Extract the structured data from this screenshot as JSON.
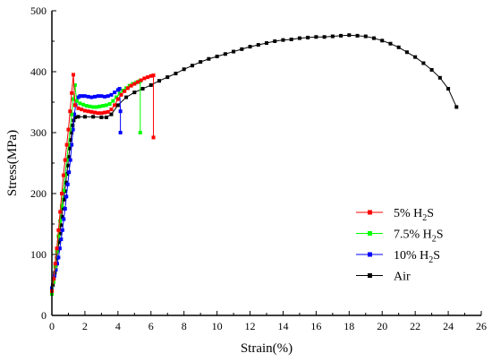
{
  "chart_data": {
    "type": "line",
    "xlabel": "Strain(%)",
    "ylabel": "Stress(MPa)",
    "xlim": [
      0,
      26
    ],
    "ylim": [
      0,
      500
    ],
    "x_ticks": [
      0,
      2,
      4,
      6,
      8,
      10,
      12,
      14,
      16,
      18,
      20,
      22,
      24,
      26
    ],
    "y_ticks": [
      0,
      100,
      200,
      300,
      400,
      500
    ],
    "legend_position": "right-middle",
    "series": [
      {
        "name": "5% H",
        "subscript": "2",
        "suffix": "S",
        "color": "#ff0000",
        "marker": "square",
        "points": [
          [
            0.0,
            40
          ],
          [
            0.1,
            60
          ],
          [
            0.2,
            85
          ],
          [
            0.3,
            110
          ],
          [
            0.4,
            140
          ],
          [
            0.5,
            170
          ],
          [
            0.6,
            200
          ],
          [
            0.7,
            230
          ],
          [
            0.8,
            255
          ],
          [
            0.9,
            280
          ],
          [
            1.0,
            305
          ],
          [
            1.1,
            335
          ],
          [
            1.2,
            365
          ],
          [
            1.3,
            395
          ],
          [
            1.4,
            345
          ],
          [
            1.6,
            340
          ],
          [
            1.8,
            338
          ],
          [
            2.0,
            336
          ],
          [
            2.2,
            335
          ],
          [
            2.4,
            334
          ],
          [
            2.6,
            333
          ],
          [
            2.8,
            332
          ],
          [
            3.0,
            332
          ],
          [
            3.2,
            333
          ],
          [
            3.4,
            334
          ],
          [
            3.6,
            338
          ],
          [
            3.8,
            345
          ],
          [
            4.0,
            355
          ],
          [
            4.2,
            362
          ],
          [
            4.4,
            368
          ],
          [
            4.6,
            373
          ],
          [
            4.8,
            377
          ],
          [
            5.0,
            380
          ],
          [
            5.2,
            383
          ],
          [
            5.4,
            386
          ],
          [
            5.6,
            389
          ],
          [
            5.8,
            391
          ],
          [
            6.0,
            393
          ],
          [
            6.15,
            394
          ],
          [
            6.15,
            292
          ]
        ]
      },
      {
        "name": "7.5% H",
        "subscript": "2",
        "suffix": "S",
        "color": "#00ff00",
        "marker": "square",
        "points": [
          [
            0.0,
            35
          ],
          [
            0.1,
            55
          ],
          [
            0.2,
            80
          ],
          [
            0.3,
            105
          ],
          [
            0.4,
            130
          ],
          [
            0.5,
            155
          ],
          [
            0.6,
            180
          ],
          [
            0.7,
            205
          ],
          [
            0.8,
            230
          ],
          [
            0.9,
            255
          ],
          [
            1.0,
            280
          ],
          [
            1.1,
            305
          ],
          [
            1.2,
            330
          ],
          [
            1.3,
            355
          ],
          [
            1.4,
            378
          ],
          [
            1.5,
            352
          ],
          [
            1.7,
            348
          ],
          [
            1.9,
            346
          ],
          [
            2.1,
            344
          ],
          [
            2.3,
            343
          ],
          [
            2.5,
            342
          ],
          [
            2.7,
            342
          ],
          [
            2.9,
            343
          ],
          [
            3.1,
            344
          ],
          [
            3.3,
            345
          ],
          [
            3.5,
            347
          ],
          [
            3.7,
            352
          ],
          [
            3.9,
            358
          ],
          [
            4.1,
            364
          ],
          [
            4.3,
            369
          ],
          [
            4.5,
            373
          ],
          [
            4.7,
            377
          ],
          [
            4.9,
            380
          ],
          [
            5.1,
            382
          ],
          [
            5.3,
            384
          ],
          [
            5.35,
            385
          ],
          [
            5.35,
            300
          ]
        ]
      },
      {
        "name": "10% H",
        "subscript": "2",
        "suffix": "S",
        "color": "#0000ff",
        "marker": "square",
        "points": [
          [
            0.0,
            45
          ],
          [
            0.08,
            55
          ],
          [
            0.16,
            65
          ],
          [
            0.24,
            75
          ],
          [
            0.32,
            85
          ],
          [
            0.4,
            95
          ],
          [
            0.48,
            110
          ],
          [
            0.56,
            125
          ],
          [
            0.64,
            140
          ],
          [
            0.72,
            158
          ],
          [
            0.8,
            175
          ],
          [
            0.88,
            195
          ],
          [
            0.96,
            215
          ],
          [
            1.04,
            235
          ],
          [
            1.12,
            255
          ],
          [
            1.2,
            280
          ],
          [
            1.28,
            305
          ],
          [
            1.36,
            330
          ],
          [
            1.44,
            345
          ],
          [
            1.5,
            352
          ],
          [
            1.6,
            358
          ],
          [
            1.7,
            360
          ],
          [
            1.85,
            360
          ],
          [
            2.0,
            360
          ],
          [
            2.2,
            359
          ],
          [
            2.4,
            358
          ],
          [
            2.6,
            359
          ],
          [
            2.8,
            360
          ],
          [
            3.0,
            360
          ],
          [
            3.2,
            359
          ],
          [
            3.4,
            360
          ],
          [
            3.6,
            362
          ],
          [
            3.8,
            366
          ],
          [
            4.0,
            370
          ],
          [
            4.1,
            372
          ],
          [
            4.15,
            335
          ],
          [
            4.15,
            300
          ]
        ]
      },
      {
        "name": "Air",
        "subscript": "",
        "suffix": "",
        "color": "#000000",
        "marker": "square",
        "points": [
          [
            0.0,
            40
          ],
          [
            0.06,
            50
          ],
          [
            0.12,
            60
          ],
          [
            0.18,
            70
          ],
          [
            0.24,
            82
          ],
          [
            0.3,
            94
          ],
          [
            0.36,
            106
          ],
          [
            0.42,
            120
          ],
          [
            0.48,
            134
          ],
          [
            0.54,
            148
          ],
          [
            0.6,
            162
          ],
          [
            0.66,
            176
          ],
          [
            0.72,
            190
          ],
          [
            0.78,
            204
          ],
          [
            0.84,
            218
          ],
          [
            0.9,
            232
          ],
          [
            0.96,
            246
          ],
          [
            1.02,
            260
          ],
          [
            1.08,
            274
          ],
          [
            1.14,
            288
          ],
          [
            1.2,
            300
          ],
          [
            1.26,
            312
          ],
          [
            1.32,
            320
          ],
          [
            1.4,
            325
          ],
          [
            1.6,
            326
          ],
          [
            2.0,
            326
          ],
          [
            2.5,
            326
          ],
          [
            3.0,
            325
          ],
          [
            3.3,
            325
          ],
          [
            3.6,
            330
          ],
          [
            4.0,
            345
          ],
          [
            4.5,
            358
          ],
          [
            5.0,
            366
          ],
          [
            5.5,
            372
          ],
          [
            6.0,
            378
          ],
          [
            6.5,
            385
          ],
          [
            7.0,
            391
          ],
          [
            7.5,
            397
          ],
          [
            8.0,
            404
          ],
          [
            8.5,
            410
          ],
          [
            9.0,
            416
          ],
          [
            9.5,
            421
          ],
          [
            10.0,
            425
          ],
          [
            10.5,
            429
          ],
          [
            11.0,
            433
          ],
          [
            11.5,
            437
          ],
          [
            12.0,
            441
          ],
          [
            12.5,
            444
          ],
          [
            13.0,
            447
          ],
          [
            13.5,
            450
          ],
          [
            14.0,
            452
          ],
          [
            14.5,
            453
          ],
          [
            15.0,
            455
          ],
          [
            15.5,
            456
          ],
          [
            16.0,
            457
          ],
          [
            16.5,
            457
          ],
          [
            17.0,
            458
          ],
          [
            17.5,
            459
          ],
          [
            18.0,
            460
          ],
          [
            18.5,
            459
          ],
          [
            19.0,
            458
          ],
          [
            19.5,
            455
          ],
          [
            20.0,
            451
          ],
          [
            20.5,
            446
          ],
          [
            21.0,
            440
          ],
          [
            21.5,
            432
          ],
          [
            22.0,
            424
          ],
          [
            22.5,
            414
          ],
          [
            23.0,
            403
          ],
          [
            23.5,
            390
          ],
          [
            24.0,
            372
          ],
          [
            24.5,
            342
          ]
        ]
      }
    ]
  }
}
